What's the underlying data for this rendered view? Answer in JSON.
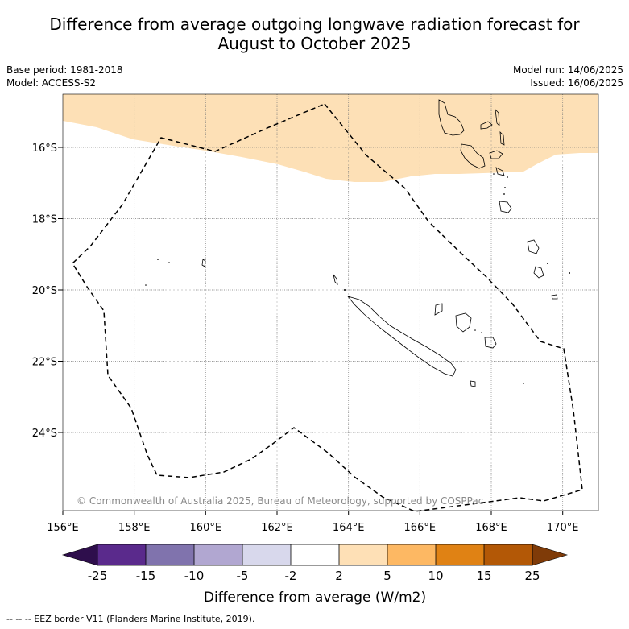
{
  "title_line1": "Difference from average outgoing longwave radiation forecast for",
  "title_line2": "August to October 2025",
  "meta": {
    "base_period": "Base period: 1981-2018",
    "model": "Model: ACCESS-S2",
    "model_run": "Model run: 14/06/2025",
    "issued": "Issued: 16/06/2025"
  },
  "map": {
    "lon_labels": [
      "156°E",
      "158°E",
      "160°E",
      "162°E",
      "164°E",
      "166°E",
      "168°E",
      "170°E"
    ],
    "lat_labels": [
      "16°S",
      "18°S",
      "20°S",
      "22°S",
      "24°S"
    ],
    "copyright": "© Commonwealth of Australia 2025, Bureau of Meteorology, supported by COSPPac",
    "colors": {
      "anomaly_fill": "#fde0b6",
      "land_outline": "#000000",
      "gridline": "#7a7a7a"
    }
  },
  "colorbar": {
    "title": "Difference from average (W/m2)",
    "tick_labels": [
      "-25",
      "-15",
      "-10",
      "-5",
      "-2",
      "2",
      "5",
      "10",
      "15",
      "25"
    ],
    "colors": [
      "#2e0e4c",
      "#5a2a8c",
      "#8073ad",
      "#b1a7d1",
      "#d8d8ec",
      "#ffffff",
      "#fee0b6",
      "#fdb863",
      "#e08214",
      "#b35806",
      "#7f3b08"
    ]
  },
  "footer": "--  --  -- EEZ border V11 (Flanders Marine Institute, 2019)."
}
